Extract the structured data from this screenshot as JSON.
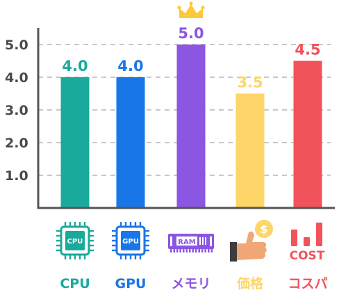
{
  "chart_data": {
    "type": "bar",
    "title": "",
    "xlabel": "",
    "ylabel": "",
    "ylim": [
      0,
      5.7
    ],
    "yticks": [
      1.0,
      2.0,
      3.0,
      4.0,
      5.0
    ],
    "ytick_labels": [
      "1.0",
      "2.0",
      "3.0",
      "4.0",
      "5.0"
    ],
    "grid": true,
    "legend": "none",
    "categories": [
      "CPU",
      "GPU",
      "メモリ",
      "価格",
      "コスパ"
    ],
    "values": [
      4.0,
      4.0,
      5.0,
      3.5,
      4.5
    ],
    "value_labels": [
      "4.0",
      "4.0",
      "5.0",
      "3.5",
      "4.5"
    ],
    "colors": [
      "#1aaa9b",
      "#1976e8",
      "#8a56e2",
      "#fdd568",
      "#f2525a"
    ],
    "icons": [
      {
        "name": "cpu-chip-icon",
        "text": "CPU"
      },
      {
        "name": "gpu-chip-icon",
        "text": "GPU"
      },
      {
        "name": "ram-module-icon",
        "text": "RAM"
      },
      {
        "name": "thumbs-up-coin-icon",
        "text": "$"
      },
      {
        "name": "cost-bars-icon",
        "text": "COST"
      }
    ],
    "highlight": {
      "index": 2,
      "icon": "crown-icon"
    }
  }
}
